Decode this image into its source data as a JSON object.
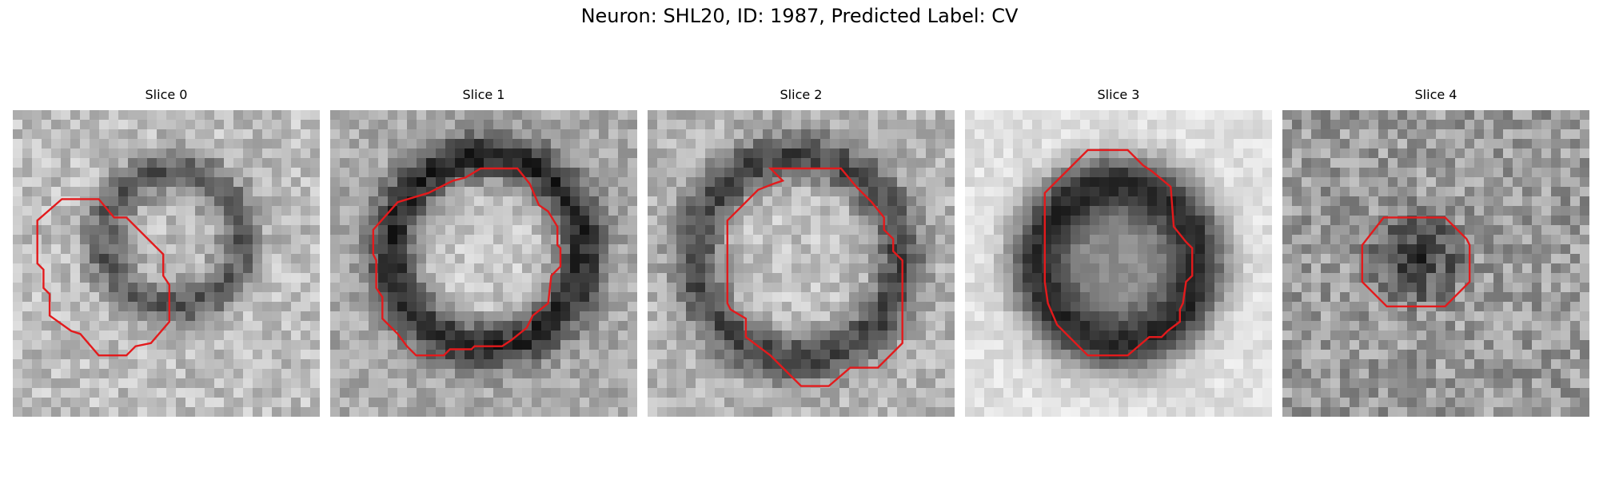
{
  "figure": {
    "title": "Neuron: SHL20, ID: 1987, Predicted Label: CV"
  },
  "panels": [
    {
      "title": "Slice 0",
      "contour_color": "#e31a1c",
      "image": {
        "bg": 190,
        "ring_center": [
          0.52,
          0.42
        ],
        "ring_radius": 0.22,
        "ring_width": 0.07,
        "ring_darkness": 100,
        "center_dark": 0,
        "noise": 34,
        "seed": 11
      },
      "contour": [
        [
          0.16,
          0.29
        ],
        [
          0.28,
          0.29
        ],
        [
          0.33,
          0.35
        ],
        [
          0.37,
          0.35
        ],
        [
          0.49,
          0.47
        ],
        [
          0.49,
          0.54
        ],
        [
          0.51,
          0.57
        ],
        [
          0.51,
          0.69
        ],
        [
          0.45,
          0.76
        ],
        [
          0.4,
          0.77
        ],
        [
          0.37,
          0.8
        ],
        [
          0.28,
          0.8
        ],
        [
          0.22,
          0.73
        ],
        [
          0.19,
          0.72
        ],
        [
          0.12,
          0.67
        ],
        [
          0.12,
          0.6
        ],
        [
          0.1,
          0.58
        ],
        [
          0.1,
          0.52
        ],
        [
          0.08,
          0.5
        ],
        [
          0.08,
          0.36
        ]
      ]
    },
    {
      "title": "Slice 1",
      "contour_color": "#e31a1c",
      "image": {
        "bg": 170,
        "ring_center": [
          0.51,
          0.46
        ],
        "ring_radius": 0.31,
        "ring_width": 0.08,
        "ring_darkness": 130,
        "center_dark": -30,
        "noise": 30,
        "seed": 23
      },
      "contour": [
        [
          0.49,
          0.19
        ],
        [
          0.61,
          0.19
        ],
        [
          0.65,
          0.24
        ],
        [
          0.68,
          0.31
        ],
        [
          0.71,
          0.33
        ],
        [
          0.74,
          0.38
        ],
        [
          0.74,
          0.44
        ],
        [
          0.75,
          0.45
        ],
        [
          0.75,
          0.51
        ],
        [
          0.72,
          0.54
        ],
        [
          0.71,
          0.63
        ],
        [
          0.66,
          0.67
        ],
        [
          0.64,
          0.71
        ],
        [
          0.59,
          0.75
        ],
        [
          0.56,
          0.77
        ],
        [
          0.47,
          0.77
        ],
        [
          0.46,
          0.78
        ],
        [
          0.39,
          0.78
        ],
        [
          0.37,
          0.8
        ],
        [
          0.28,
          0.8
        ],
        [
          0.25,
          0.77
        ],
        [
          0.22,
          0.73
        ],
        [
          0.2,
          0.71
        ],
        [
          0.17,
          0.68
        ],
        [
          0.17,
          0.61
        ],
        [
          0.15,
          0.58
        ],
        [
          0.15,
          0.49
        ],
        [
          0.14,
          0.47
        ],
        [
          0.14,
          0.39
        ],
        [
          0.22,
          0.3
        ],
        [
          0.32,
          0.27
        ],
        [
          0.4,
          0.23
        ],
        [
          0.44,
          0.22
        ]
      ]
    },
    {
      "title": "Slice 2",
      "contour_color": "#e31a1c",
      "image": {
        "bg": 180,
        "ring_center": [
          0.49,
          0.48
        ],
        "ring_radius": 0.33,
        "ring_width": 0.08,
        "ring_darkness": 110,
        "center_dark": -15,
        "noise": 32,
        "seed": 37
      },
      "contour": [
        [
          0.4,
          0.19
        ],
        [
          0.63,
          0.19
        ],
        [
          0.68,
          0.25
        ],
        [
          0.73,
          0.3
        ],
        [
          0.77,
          0.35
        ],
        [
          0.77,
          0.39
        ],
        [
          0.8,
          0.42
        ],
        [
          0.8,
          0.46
        ],
        [
          0.83,
          0.49
        ],
        [
          0.83,
          0.76
        ],
        [
          0.79,
          0.8
        ],
        [
          0.75,
          0.84
        ],
        [
          0.66,
          0.84
        ],
        [
          0.59,
          0.9
        ],
        [
          0.5,
          0.9
        ],
        [
          0.44,
          0.84
        ],
        [
          0.4,
          0.8
        ],
        [
          0.32,
          0.74
        ],
        [
          0.32,
          0.68
        ],
        [
          0.27,
          0.65
        ],
        [
          0.26,
          0.63
        ],
        [
          0.26,
          0.36
        ],
        [
          0.3,
          0.32
        ],
        [
          0.36,
          0.26
        ],
        [
          0.41,
          0.24
        ],
        [
          0.44,
          0.23
        ]
      ]
    },
    {
      "title": "Slice 3",
      "contour_color": "#e31a1c",
      "image": {
        "bg": 225,
        "ring_center": [
          0.5,
          0.5
        ],
        "ring_radius": 0.26,
        "ring_width": 0.1,
        "ring_darkness": 185,
        "center_dark": 80,
        "noise": 18,
        "seed": 51
      },
      "contour": [
        [
          0.4,
          0.13
        ],
        [
          0.53,
          0.13
        ],
        [
          0.58,
          0.18
        ],
        [
          0.61,
          0.2
        ],
        [
          0.67,
          0.25
        ],
        [
          0.68,
          0.38
        ],
        [
          0.72,
          0.43
        ],
        [
          0.74,
          0.45
        ],
        [
          0.74,
          0.54
        ],
        [
          0.72,
          0.56
        ],
        [
          0.71,
          0.63
        ],
        [
          0.7,
          0.65
        ],
        [
          0.7,
          0.69
        ],
        [
          0.66,
          0.72
        ],
        [
          0.64,
          0.74
        ],
        [
          0.6,
          0.74
        ],
        [
          0.53,
          0.8
        ],
        [
          0.4,
          0.8
        ],
        [
          0.3,
          0.7
        ],
        [
          0.27,
          0.63
        ],
        [
          0.26,
          0.56
        ],
        [
          0.26,
          0.27
        ],
        [
          0.31,
          0.22
        ],
        [
          0.35,
          0.18
        ]
      ]
    },
    {
      "title": "Slice 4",
      "contour_color": "#e31a1c",
      "image": {
        "bg": 155,
        "ring_center": [
          0.44,
          0.48
        ],
        "ring_radius": 0.1,
        "ring_width": 0.06,
        "ring_darkness": 60,
        "center_dark": 100,
        "noise": 42,
        "seed": 67
      },
      "contour": [
        [
          0.33,
          0.35
        ],
        [
          0.53,
          0.35
        ],
        [
          0.6,
          0.42
        ],
        [
          0.61,
          0.44
        ],
        [
          0.61,
          0.56
        ],
        [
          0.53,
          0.64
        ],
        [
          0.52,
          0.64
        ],
        [
          0.34,
          0.64
        ],
        [
          0.26,
          0.56
        ],
        [
          0.26,
          0.44
        ]
      ]
    }
  ]
}
